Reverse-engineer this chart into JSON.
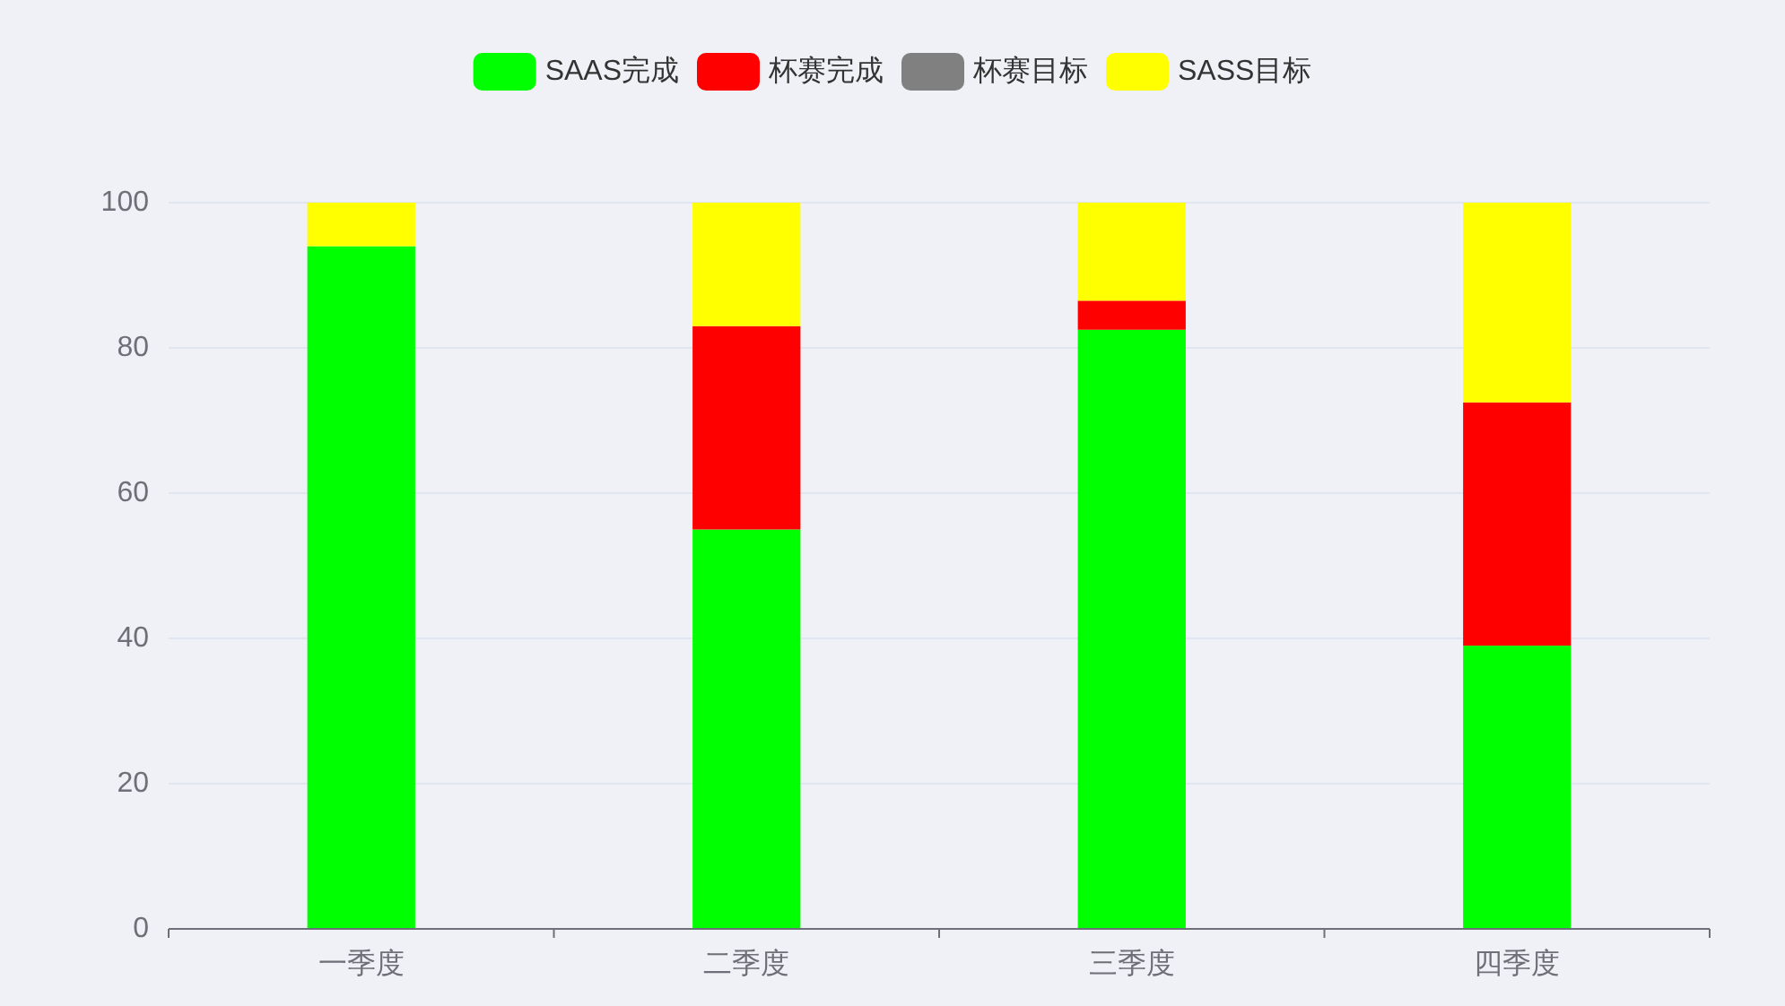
{
  "chart_data": {
    "type": "bar",
    "categories": [
      "一季度",
      "二季度",
      "三季度",
      "四季度"
    ],
    "stacked": true,
    "series": [
      {
        "name": "SAAS完成",
        "color": "#00ff00",
        "values": [
          94,
          55,
          82.5,
          39
        ]
      },
      {
        "name": "杯赛完成",
        "color": "#ff0000",
        "values": [
          null,
          28,
          4,
          33.5
        ]
      },
      {
        "name": "杯赛目标",
        "color": "#808080",
        "values": [
          null,
          null,
          null,
          null
        ]
      },
      {
        "name": "SASS目标",
        "color": "#ffff00",
        "values": [
          6,
          17,
          13.5,
          27.5
        ]
      }
    ],
    "ylim": [
      0,
      100
    ],
    "yticks": [
      0,
      20,
      40,
      60,
      80,
      100
    ],
    "grid": "y",
    "legend": "top"
  }
}
